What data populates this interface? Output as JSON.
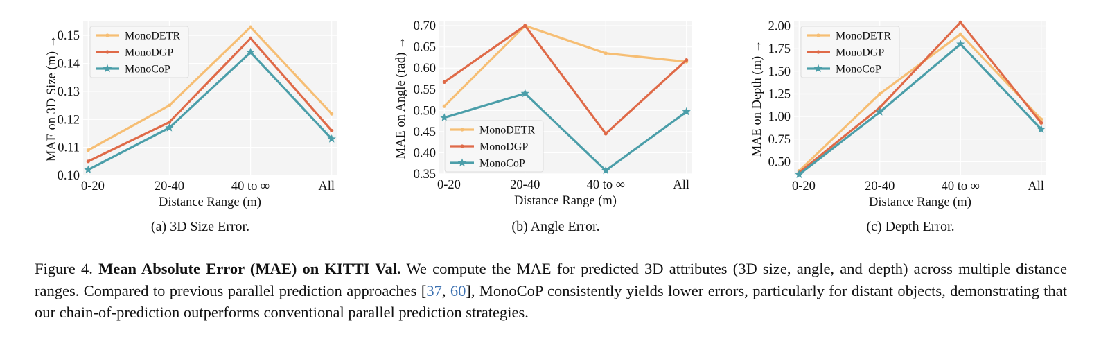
{
  "colors": {
    "monodetr": "#f6be74",
    "monodgp": "#df6a48",
    "monocop": "#4b9ea9",
    "plot_bg": "#f4f4f4",
    "grid": "#ffffff",
    "ref_link": "#3a6fb0"
  },
  "chart_data": [
    {
      "type": "line",
      "xlabel": "Distance Range (m)",
      "ylabel": "MAE on 3D Size (m) →",
      "subcaption": "(a) 3D Size Error.",
      "categories": [
        "0-20",
        "20-40",
        "40 to ∞",
        "All"
      ],
      "ylim": [
        0.1,
        0.155
      ],
      "yticks": [
        "0.10",
        "0.11",
        "0.12",
        "0.13",
        "0.14",
        "0.15"
      ],
      "legend_position": "upper left",
      "grid": true,
      "series": [
        {
          "name": "MonoDETR",
          "values": [
            0.109,
            0.125,
            0.153,
            0.122
          ],
          "marker": "dot"
        },
        {
          "name": "MonoDGP",
          "values": [
            0.105,
            0.119,
            0.149,
            0.116
          ],
          "marker": "dot"
        },
        {
          "name": "MonoCoP",
          "values": [
            0.102,
            0.117,
            0.144,
            0.113
          ],
          "marker": "star"
        }
      ]
    },
    {
      "type": "line",
      "xlabel": "Distance Range (m)",
      "ylabel": "MAE on Angle (rad) →",
      "subcaption": "(b) Angle Error.",
      "categories": [
        "0-20",
        "20-40",
        "40 to ∞",
        "All"
      ],
      "ylim": [
        0.35,
        0.71
      ],
      "yticks": [
        "0.35",
        "0.40",
        "0.45",
        "0.50",
        "0.55",
        "0.60",
        "0.65",
        "0.70"
      ],
      "legend_position": "lower left",
      "grid": true,
      "series": [
        {
          "name": "MonoDETR",
          "values": [
            0.51,
            0.7,
            0.635,
            0.615
          ],
          "marker": "dot"
        },
        {
          "name": "MonoDGP",
          "values": [
            0.567,
            0.7,
            0.445,
            0.619
          ],
          "marker": "dot"
        },
        {
          "name": "MonoCoP",
          "values": [
            0.483,
            0.54,
            0.358,
            0.497
          ],
          "marker": "star"
        }
      ]
    },
    {
      "type": "line",
      "xlabel": "Distance Range (m)",
      "ylabel": "MAE on Depth (m) →",
      "subcaption": "(c) Depth Error.",
      "categories": [
        "0-20",
        "20-40",
        "40 to ∞",
        "All"
      ],
      "ylim": [
        0.35,
        2.05
      ],
      "yticks": [
        "0.50",
        "0.75",
        "1.00",
        "1.25",
        "1.50",
        "1.75",
        "2.00"
      ],
      "legend_position": "upper left",
      "grid": true,
      "series": [
        {
          "name": "MonoDETR",
          "values": [
            0.4,
            1.25,
            1.91,
            0.97
          ],
          "marker": "dot"
        },
        {
          "name": "MonoDGP",
          "values": [
            0.38,
            1.1,
            2.04,
            0.93
          ],
          "marker": "dot"
        },
        {
          "name": "MonoCoP",
          "values": [
            0.36,
            1.05,
            1.8,
            0.86
          ],
          "marker": "star"
        }
      ]
    }
  ],
  "caption": {
    "label": "Figure 4.",
    "bold_title": "Mean Absolute Error (MAE) on KITTI Val.",
    "text_before_refs": "We compute the MAE for predicted 3D attributes (3D size, angle, and depth) across multiple distance ranges. Compared to previous parallel prediction approaches [",
    "ref1": "37",
    "ref_sep": ", ",
    "ref2": "60",
    "text_after_refs": "], MonoCoP consistently yields lower errors, particularly for distant objects, demonstrating that our chain-of-prediction outperforms conventional parallel prediction strategies."
  }
}
